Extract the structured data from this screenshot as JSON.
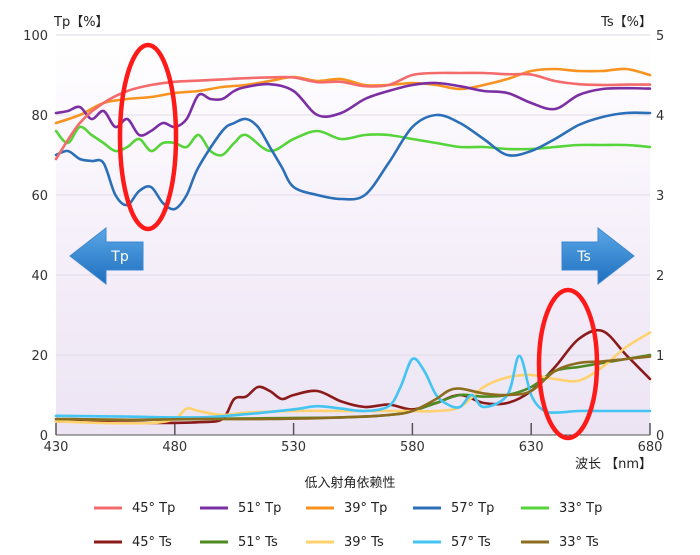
{
  "chart_data": {
    "type": "line",
    "title": "",
    "xlabel": "波长 【nm】",
    "ylabel_left": "Tp【%】",
    "ylabel_right": "Ts【%】",
    "caption": "低入射角依赖性",
    "xlim": [
      430,
      680
    ],
    "ylim_left": [
      0,
      100
    ],
    "ylim_right": [
      0,
      5
    ],
    "x_ticks": [
      430,
      480,
      530,
      580,
      630,
      680
    ],
    "y_ticks_left": [
      0,
      20,
      40,
      60,
      80,
      100
    ],
    "y_ticks_right": [
      0,
      1,
      2,
      3,
      4,
      5
    ],
    "grid": true,
    "legend_position": "bottom",
    "arrows": [
      {
        "label": "Tp",
        "direction": "left"
      },
      {
        "label": "Ts",
        "direction": "right"
      }
    ],
    "series": [
      {
        "name": "45° Tp",
        "axis": "left",
        "color": "#f36b6b",
        "x": [
          430,
          440,
          450,
          460,
          470,
          480,
          490,
          500,
          510,
          520,
          530,
          540,
          550,
          560,
          570,
          580,
          590,
          600,
          610,
          620,
          630,
          640,
          650,
          660,
          670,
          680
        ],
        "y": [
          69,
          78,
          83,
          86,
          87.5,
          88.3,
          88.6,
          88.9,
          89.2,
          89.4,
          89.4,
          88.2,
          88.3,
          87.2,
          87.5,
          90,
          90.5,
          90.5,
          90.5,
          90.2,
          90.1,
          88.5,
          87.7,
          87.5,
          87.6,
          87.6
        ]
      },
      {
        "name": "51° Tp",
        "axis": "left",
        "color": "#7b2fa3",
        "x": [
          430,
          435,
          440,
          445,
          450,
          455,
          460,
          465,
          470,
          475,
          480,
          485,
          490,
          495,
          500,
          505,
          510,
          520,
          530,
          540,
          550,
          560,
          570,
          580,
          590,
          600,
          610,
          620,
          630,
          640,
          650,
          660,
          670,
          680
        ],
        "y": [
          80.5,
          81,
          82,
          79,
          81,
          77,
          79,
          75,
          76,
          78,
          77,
          79,
          85,
          84,
          84,
          86,
          87,
          87.7,
          86,
          80,
          80.5,
          84,
          86,
          87.5,
          88,
          87.2,
          86,
          85.5,
          83,
          81.5,
          85,
          86.5,
          86.7,
          86.6
        ]
      },
      {
        "name": "39° Tp",
        "axis": "left",
        "color": "#f7931e",
        "x": [
          430,
          440,
          450,
          460,
          470,
          480,
          490,
          500,
          510,
          520,
          530,
          540,
          550,
          560,
          570,
          580,
          590,
          600,
          610,
          620,
          630,
          640,
          650,
          660,
          670,
          680
        ],
        "y": [
          78,
          80,
          83,
          84,
          84.5,
          85.5,
          86,
          87,
          87.5,
          88.5,
          89.5,
          88.5,
          89,
          87.5,
          87.5,
          88,
          87.5,
          86.5,
          87.5,
          89,
          91,
          91.5,
          91,
          91,
          91.5,
          90
        ]
      },
      {
        "name": "57° Tp",
        "axis": "left",
        "color": "#2a6fb8",
        "x": [
          430,
          435,
          440,
          445,
          450,
          455,
          460,
          465,
          470,
          475,
          480,
          485,
          490,
          500,
          505,
          510,
          515,
          520,
          525,
          530,
          540,
          550,
          560,
          570,
          580,
          590,
          600,
          610,
          620,
          630,
          640,
          650,
          660,
          670,
          680
        ],
        "y": [
          70,
          71,
          69,
          68.5,
          68,
          60,
          57.5,
          61,
          62,
          58,
          56.5,
          60,
          67,
          76,
          78,
          79,
          77,
          72,
          67,
          62,
          60,
          59,
          60,
          68,
          77,
          80,
          78,
          74,
          70,
          71,
          74,
          77.5,
          79.5,
          80.5,
          80.5
        ]
      },
      {
        "name": "33° Tp",
        "axis": "left",
        "color": "#56d43a",
        "x": [
          430,
          435,
          440,
          445,
          450,
          455,
          460,
          465,
          470,
          475,
          480,
          485,
          490,
          495,
          500,
          505,
          510,
          520,
          530,
          540,
          550,
          560,
          570,
          580,
          590,
          600,
          610,
          620,
          630,
          640,
          650,
          660,
          670,
          680
        ],
        "y": [
          76,
          73,
          77,
          75,
          73,
          71,
          72,
          74,
          71,
          73,
          73,
          72,
          75,
          71,
          70,
          73,
          75,
          71,
          74,
          76,
          74,
          75,
          75,
          74,
          73,
          72,
          72,
          71.5,
          71.5,
          72,
          72.5,
          72.5,
          72.5,
          72
        ]
      },
      {
        "name": "45° Ts",
        "axis": "right",
        "color": "#8b1a1a",
        "x": [
          430,
          450,
          470,
          490,
          500,
          505,
          510,
          515,
          520,
          525,
          530,
          540,
          550,
          560,
          570,
          580,
          590,
          600,
          610,
          620,
          630,
          640,
          650,
          660,
          670,
          680
        ],
        "y": [
          0.17,
          0.16,
          0.15,
          0.16,
          0.2,
          0.45,
          0.48,
          0.6,
          0.55,
          0.45,
          0.5,
          0.55,
          0.42,
          0.35,
          0.38,
          0.32,
          0.4,
          0.5,
          0.4,
          0.4,
          0.55,
          0.85,
          1.2,
          1.3,
          1.0,
          0.7
        ]
      },
      {
        "name": "51° Ts",
        "axis": "right",
        "color": "#4e8a22",
        "x": [
          430,
          460,
          490,
          520,
          550,
          570,
          580,
          590,
          600,
          610,
          620,
          630,
          640,
          650,
          660,
          670,
          680
        ],
        "y": [
          0.2,
          0.19,
          0.2,
          0.21,
          0.22,
          0.25,
          0.3,
          0.4,
          0.5,
          0.48,
          0.5,
          0.6,
          0.8,
          0.85,
          0.9,
          0.95,
          1.0
        ]
      },
      {
        "name": "39° Ts",
        "axis": "right",
        "color": "#ffd26e",
        "x": [
          430,
          450,
          470,
          480,
          485,
          490,
          500,
          510,
          530,
          550,
          570,
          580,
          590,
          600,
          610,
          620,
          630,
          640,
          650,
          660,
          670,
          680
        ],
        "y": [
          0.17,
          0.15,
          0.15,
          0.2,
          0.33,
          0.3,
          0.25,
          0.28,
          0.3,
          0.3,
          0.3,
          0.3,
          0.3,
          0.35,
          0.6,
          0.72,
          0.75,
          0.7,
          0.68,
          0.85,
          1.1,
          1.28
        ]
      },
      {
        "name": "57° Ts",
        "axis": "right",
        "color": "#43c4f2",
        "x": [
          430,
          460,
          490,
          510,
          530,
          540,
          550,
          560,
          570,
          575,
          580,
          585,
          590,
          595,
          600,
          605,
          610,
          620,
          625,
          630,
          635,
          640,
          650,
          660,
          670,
          680
        ],
        "y": [
          0.24,
          0.23,
          0.22,
          0.26,
          0.32,
          0.36,
          0.33,
          0.3,
          0.36,
          0.6,
          0.95,
          0.8,
          0.5,
          0.38,
          0.35,
          0.5,
          0.35,
          0.5,
          0.99,
          0.5,
          0.31,
          0.28,
          0.3,
          0.3,
          0.3,
          0.3
        ]
      },
      {
        "name": "33° Ts",
        "axis": "right",
        "color": "#8c6d1f",
        "x": [
          430,
          460,
          490,
          520,
          550,
          570,
          580,
          590,
          595,
          600,
          610,
          620,
          630,
          640,
          650,
          660,
          670,
          680
        ],
        "y": [
          0.2,
          0.19,
          0.2,
          0.2,
          0.22,
          0.25,
          0.3,
          0.45,
          0.55,
          0.58,
          0.52,
          0.5,
          0.55,
          0.8,
          0.9,
          0.92,
          0.95,
          0.98
        ]
      }
    ]
  }
}
